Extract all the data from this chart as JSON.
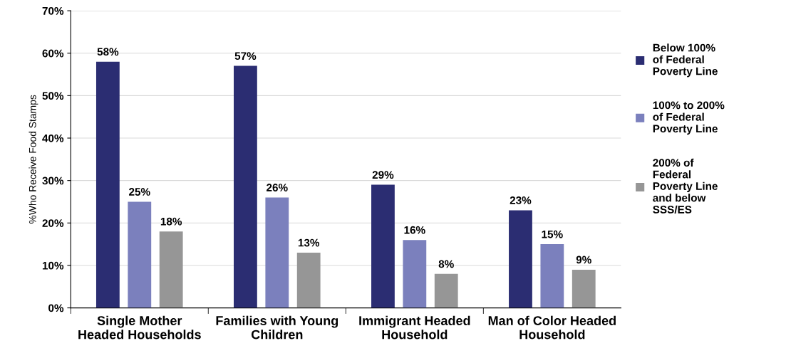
{
  "chart_data": {
    "type": "bar",
    "ylabel": "%Who Receive Food Stamps",
    "categories": [
      "Single Mother\nHeaded Households",
      "Families with Young\nChildren",
      "Immigrant Headed\nHousehold",
      "Man of Color Headed\nHousehold"
    ],
    "series": [
      {
        "name": "Below 100%\nof Federal\nPoverty Line",
        "color": "#2b2d72",
        "values": [
          58,
          57,
          29,
          23
        ],
        "value_labels": [
          "58%",
          "57%",
          "29%",
          "23%"
        ]
      },
      {
        "name": "100% to 200%\nof Federal\nPoverty Line",
        "color": "#7b80bd",
        "values": [
          25,
          26,
          16,
          15
        ],
        "value_labels": [
          "25%",
          "26%",
          "16%",
          "15%"
        ]
      },
      {
        "name": "200% of\nFederal\nPoverty Line\nand below\nSSS/ES",
        "color": "#969696",
        "values": [
          18,
          13,
          8,
          9
        ],
        "value_labels": [
          "18%",
          "13%",
          "8%",
          "9%"
        ]
      }
    ],
    "ylim": [
      0,
      70
    ],
    "yticks": [
      {
        "value": 0,
        "label": "0%"
      },
      {
        "value": 10,
        "label": "10%"
      },
      {
        "value": 20,
        "label": "20%"
      },
      {
        "value": 30,
        "label": "30%"
      },
      {
        "value": 40,
        "label": "40%"
      },
      {
        "value": 50,
        "label": "50%"
      },
      {
        "value": 60,
        "label": "60%"
      },
      {
        "value": 70,
        "label": "70%"
      }
    ],
    "grid": "y",
    "legend": "right"
  }
}
